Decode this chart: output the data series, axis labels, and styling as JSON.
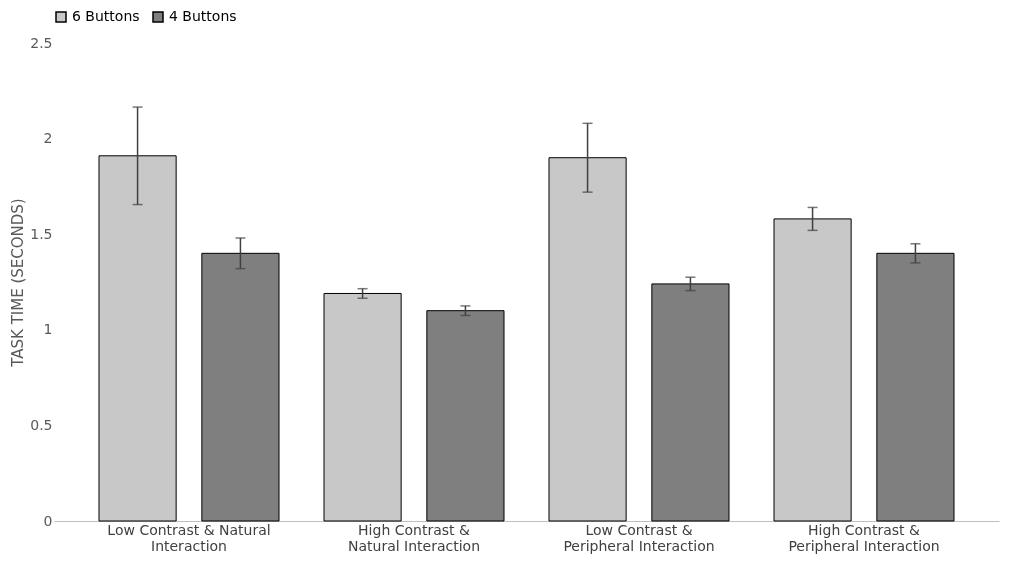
{
  "chart_data": {
    "type": "bar",
    "ylabel": "TASK TIME (SECONDS)",
    "categories": [
      "Low Contrast & Natural Interaction",
      "High Contrast & Natural Interaction",
      "Low Contrast & Peripheral Interaction",
      "High Contrast & Peripheral Interaction"
    ],
    "series": [
      {
        "name": "6 Buttons",
        "color": "#c8c8c8",
        "values": [
          1.91,
          1.19,
          1.9,
          1.58
        ],
        "errors": [
          0.255,
          0.025,
          0.18,
          0.06
        ]
      },
      {
        "name": "4 Buttons",
        "color": "#7f7f7f",
        "values": [
          1.4,
          1.1,
          1.24,
          1.4
        ],
        "errors": [
          0.08,
          0.025,
          0.035,
          0.05
        ]
      }
    ],
    "ylim": [
      0,
      2.5
    ],
    "yticks": [
      0,
      0.5,
      1,
      1.5,
      2,
      2.5
    ],
    "grid": false,
    "legend": "top"
  }
}
